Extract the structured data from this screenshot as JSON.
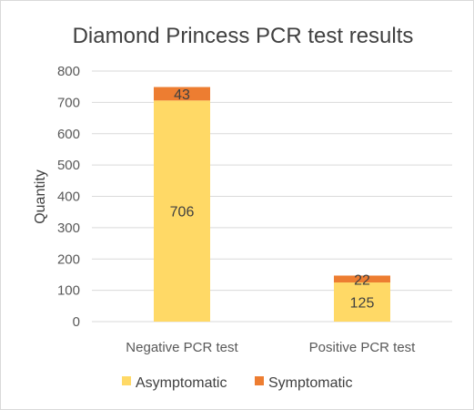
{
  "chart_data": {
    "type": "bar",
    "stacked": true,
    "title": "Diamond Princess PCR test results",
    "xlabel": "",
    "ylabel": "Quantity",
    "categories": [
      "Negative PCR test",
      "Positive PCR test"
    ],
    "series": [
      {
        "name": "Asymptomatic",
        "values": [
          706,
          125
        ],
        "color": "#FFD966"
      },
      {
        "name": "Symptomatic",
        "values": [
          43,
          22
        ],
        "color": "#ED7D31"
      }
    ],
    "ylim": [
      0,
      800
    ],
    "yticks": [
      0,
      100,
      200,
      300,
      400,
      500,
      600,
      700,
      800
    ],
    "grid": true,
    "legend": "bottom",
    "data_labels": true
  }
}
